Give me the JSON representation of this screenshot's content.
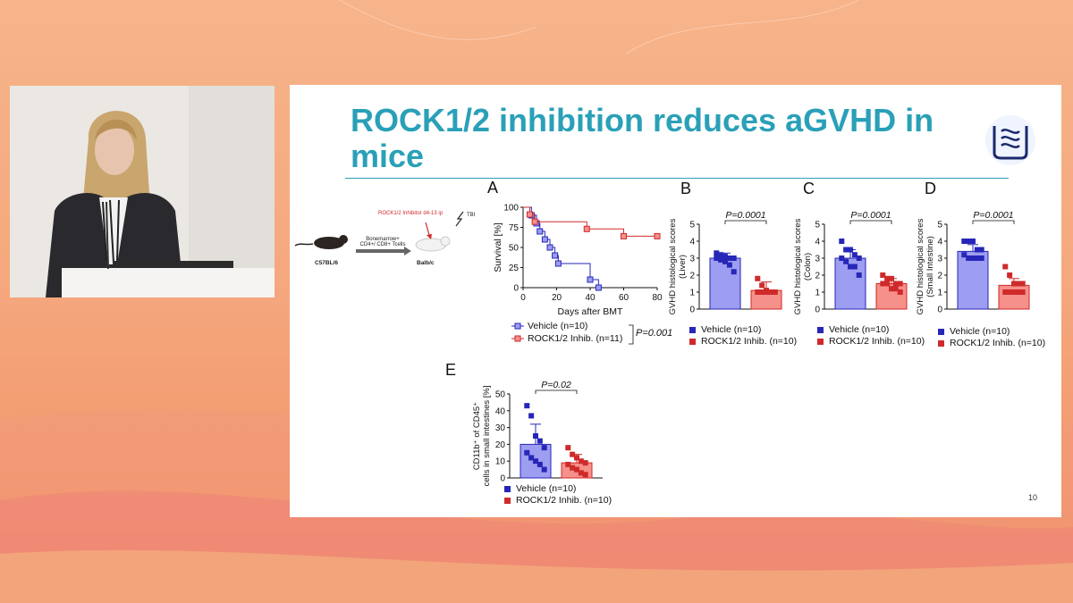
{
  "slide": {
    "title": "ROCK1/2 inhibition reduces aGVHD in mice",
    "page_number": "10"
  },
  "schematic": {
    "donor": "C57BL/6",
    "recipient": "Balb/c",
    "transfer": "Bonemarrow+\nCD4+/ CD8+ Tcells",
    "treatment": "ROCK1/2 Inhibitor d4-13 ip",
    "irradiation": "TBI"
  },
  "colors": {
    "title": "#2aa0b8",
    "vehicle": "#2626b8",
    "vehicle_fill": "#9d9df2",
    "rock": "#cf2a2a",
    "rock_fill": "#f5908a"
  },
  "panels": {
    "A": "A",
    "B": "B",
    "C": "C",
    "D": "D",
    "E": "E"
  },
  "chart_data": [
    {
      "panel": "A",
      "type": "line",
      "xlabel": "Days after BMT",
      "ylabel": "Survival [%]",
      "xlim": [
        0,
        80
      ],
      "ylim": [
        0,
        100
      ],
      "xticks": [
        0,
        20,
        40,
        60,
        80
      ],
      "yticks": [
        0,
        25,
        50,
        75,
        100
      ],
      "series": [
        {
          "name": "Vehicle (n=10)",
          "x": [
            0,
            5,
            8,
            10,
            13,
            16,
            19,
            21,
            40,
            45
          ],
          "y": [
            100,
            90,
            80,
            70,
            60,
            50,
            40,
            30,
            10,
            0
          ]
        },
        {
          "name": "ROCK1/2 Inhib. (n=11)",
          "x": [
            0,
            4,
            7,
            38,
            60,
            80
          ],
          "y": [
            100,
            91,
            82,
            73,
            64,
            64
          ]
        }
      ],
      "annotation": "P=0.001"
    },
    {
      "panel": "B",
      "type": "bar",
      "ylabel": "GVHD histological scores (Liver)",
      "ylim": [
        0,
        5
      ],
      "yticks": [
        0,
        1,
        2,
        3,
        4,
        5
      ],
      "categories": [
        "Vehicle (n=10)",
        "ROCK1/2 Inhib. (n=10)"
      ],
      "values": [
        3.0,
        1.1
      ],
      "errors": [
        0.3,
        0.5
      ],
      "points": [
        [
          3.3,
          3.2,
          3.1,
          3.0,
          3.0,
          3.0,
          2.9,
          2.8,
          2.6,
          2.2
        ],
        [
          1.8,
          1.4,
          1.1,
          1.0,
          1.0,
          1.0,
          1.0,
          1.0,
          1.0,
          1.0
        ]
      ],
      "annotation": "P=0.0001"
    },
    {
      "panel": "C",
      "type": "bar",
      "ylabel": "GVHD histological scores (Colon)",
      "ylim": [
        0,
        5
      ],
      "yticks": [
        0,
        1,
        2,
        3,
        4,
        5
      ],
      "categories": [
        "Vehicle (n=10)",
        "ROCK1/2 Inhib. (n=10)"
      ],
      "values": [
        3.0,
        1.5
      ],
      "errors": [
        0.5,
        0.3
      ],
      "points": [
        [
          4.0,
          3.5,
          3.5,
          3.2,
          3.0,
          3.0,
          2.8,
          2.5,
          2.5,
          2.0
        ],
        [
          2.0,
          1.8,
          1.8,
          1.5,
          1.5,
          1.5,
          1.5,
          1.2,
          1.2,
          1.0
        ]
      ],
      "annotation": "P=0.0001"
    },
    {
      "panel": "D",
      "type": "bar",
      "ylabel": "GVHD histological scores (Small Intestine)",
      "ylim": [
        0,
        5
      ],
      "yticks": [
        0,
        1,
        2,
        3,
        4,
        5
      ],
      "categories": [
        "Vehicle (n=10)",
        "ROCK1/2 Inhib. (n=10)"
      ],
      "values": [
        3.4,
        1.4
      ],
      "errors": [
        0.4,
        0.4
      ],
      "points": [
        [
          4.0,
          4.0,
          4.0,
          3.5,
          3.5,
          3.2,
          3.0,
          3.0,
          3.0,
          3.0
        ],
        [
          2.5,
          2.0,
          1.5,
          1.5,
          1.5,
          1.0,
          1.0,
          1.0,
          1.0,
          1.0
        ]
      ],
      "annotation": "P=0.0001"
    },
    {
      "panel": "E",
      "type": "bar",
      "ylabel": "CD11b+ of CD45+ cells in small intestines [%]",
      "ylim": [
        0,
        50
      ],
      "yticks": [
        0,
        10,
        20,
        30,
        40,
        50
      ],
      "categories": [
        "Vehicle (n=10)",
        "ROCK1/2 Inhib. (n=10)"
      ],
      "values": [
        20,
        9
      ],
      "errors": [
        12,
        5
      ],
      "points": [
        [
          43,
          37,
          25,
          22,
          18,
          15,
          12,
          10,
          8,
          5
        ],
        [
          18,
          14,
          12,
          10,
          9,
          8,
          6,
          5,
          3,
          2
        ]
      ],
      "annotation": "P=0.02"
    }
  ]
}
